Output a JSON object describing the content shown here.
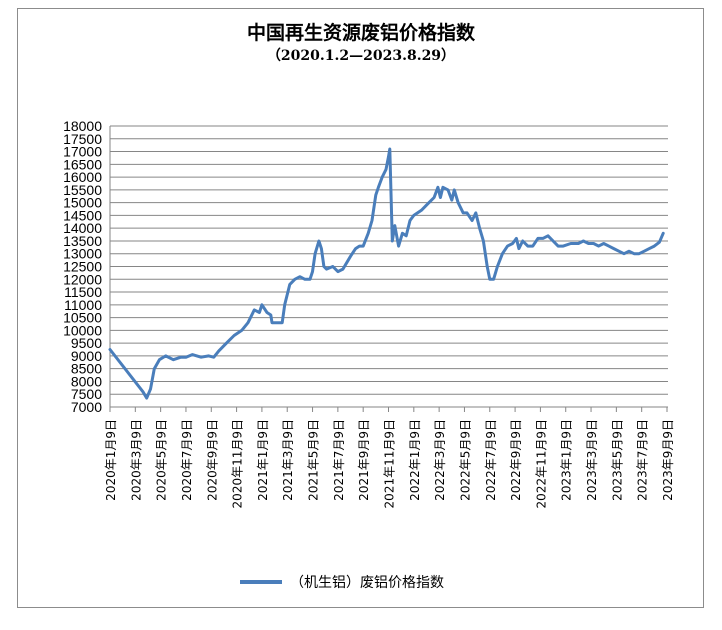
{
  "chart_data": {
    "type": "line",
    "title": "中国再生资源废铝价格指数",
    "subtitle": "（2020.1.2—2023.8.29）",
    "ylim": [
      7000,
      18000
    ],
    "yticks": [
      "7000",
      "7500",
      "8000",
      "8500",
      "9000",
      "9500",
      "10000",
      "10500",
      "11000",
      "11500",
      "12000",
      "12500",
      "13000",
      "13500",
      "14000",
      "14500",
      "15000",
      "15500",
      "16000",
      "16500",
      "17000",
      "17500",
      "18000"
    ],
    "xticks": [
      "2020年1月9日",
      "2020年3月9日",
      "2020年5月9日",
      "2020年7月9日",
      "2020年9月9日",
      "2020年11月9日",
      "2021年1月9日",
      "2021年3月9日",
      "2021年5月9日",
      "2021年7月9日",
      "2021年9月9日",
      "2021年11月9日",
      "2022年1月9日",
      "2022年3月9日",
      "2022年5月9日",
      "2022年7月9日",
      "2022年9月9日",
      "2022年11月9日",
      "2023年1月9日",
      "2023年3月9日",
      "2023年5月9日",
      "2023年7月9日",
      "2023年9月9日"
    ],
    "grid": true,
    "legend_position": "bottom",
    "series": [
      {
        "name": "（机生铝）废铝价格指数",
        "color": "#4a7ebb",
        "points": [
          [
            0.0,
            9250
          ],
          [
            1.3,
            7600
          ],
          [
            1.45,
            7350
          ],
          [
            1.6,
            7700
          ],
          [
            1.75,
            8500
          ],
          [
            1.95,
            8850
          ],
          [
            2.2,
            9000
          ],
          [
            2.5,
            8850
          ],
          [
            2.8,
            8950
          ],
          [
            3.0,
            8950
          ],
          [
            3.25,
            9050
          ],
          [
            3.6,
            8950
          ],
          [
            3.9,
            9000
          ],
          [
            4.1,
            8950
          ],
          [
            4.3,
            9200
          ],
          [
            4.6,
            9500
          ],
          [
            4.9,
            9800
          ],
          [
            5.2,
            10000
          ],
          [
            5.45,
            10300
          ],
          [
            5.7,
            10800
          ],
          [
            5.9,
            10700
          ],
          [
            6.0,
            11000
          ],
          [
            6.2,
            10700
          ],
          [
            6.35,
            10600
          ],
          [
            6.4,
            10300
          ],
          [
            6.8,
            10300
          ],
          [
            6.9,
            11000
          ],
          [
            7.1,
            11800
          ],
          [
            7.3,
            12000
          ],
          [
            7.5,
            12100
          ],
          [
            7.7,
            12000
          ],
          [
            7.9,
            12000
          ],
          [
            8.0,
            12300
          ],
          [
            8.1,
            13000
          ],
          [
            8.25,
            13500
          ],
          [
            8.35,
            13200
          ],
          [
            8.45,
            12500
          ],
          [
            8.55,
            12400
          ],
          [
            8.8,
            12500
          ],
          [
            9.0,
            12300
          ],
          [
            9.2,
            12400
          ],
          [
            9.5,
            12900
          ],
          [
            9.7,
            13200
          ],
          [
            9.85,
            13300
          ],
          [
            10.0,
            13300
          ],
          [
            10.2,
            13800
          ],
          [
            10.35,
            14300
          ],
          [
            10.5,
            15300
          ],
          [
            10.6,
            15600
          ],
          [
            10.75,
            16000
          ],
          [
            10.9,
            16300
          ],
          [
            11.0,
            16800
          ],
          [
            11.05,
            17100
          ],
          [
            11.15,
            13500
          ],
          [
            11.25,
            14100
          ],
          [
            11.4,
            13300
          ],
          [
            11.55,
            13800
          ],
          [
            11.7,
            13700
          ],
          [
            11.85,
            14300
          ],
          [
            12.0,
            14500
          ],
          [
            12.3,
            14700
          ],
          [
            12.6,
            15000
          ],
          [
            12.8,
            15200
          ],
          [
            12.95,
            15600
          ],
          [
            13.05,
            15200
          ],
          [
            13.15,
            15600
          ],
          [
            13.35,
            15500
          ],
          [
            13.5,
            15100
          ],
          [
            13.6,
            15500
          ],
          [
            13.75,
            15000
          ],
          [
            13.95,
            14600
          ],
          [
            14.1,
            14600
          ],
          [
            14.3,
            14300
          ],
          [
            14.45,
            14600
          ],
          [
            14.6,
            14000
          ],
          [
            14.75,
            13500
          ],
          [
            14.9,
            12500
          ],
          [
            15.0,
            12000
          ],
          [
            15.15,
            12000
          ],
          [
            15.3,
            12500
          ],
          [
            15.5,
            13000
          ],
          [
            15.7,
            13300
          ],
          [
            15.9,
            13400
          ],
          [
            16.05,
            13600
          ],
          [
            16.15,
            13200
          ],
          [
            16.3,
            13500
          ],
          [
            16.5,
            13300
          ],
          [
            16.7,
            13300
          ],
          [
            16.9,
            13600
          ],
          [
            17.1,
            13600
          ],
          [
            17.3,
            13700
          ],
          [
            17.5,
            13500
          ],
          [
            17.7,
            13300
          ],
          [
            17.9,
            13300
          ],
          [
            18.2,
            13400
          ],
          [
            18.5,
            13400
          ],
          [
            18.7,
            13500
          ],
          [
            18.9,
            13400
          ],
          [
            19.1,
            13400
          ],
          [
            19.3,
            13300
          ],
          [
            19.5,
            13400
          ],
          [
            19.7,
            13300
          ],
          [
            19.9,
            13200
          ],
          [
            20.1,
            13100
          ],
          [
            20.3,
            13000
          ],
          [
            20.5,
            13100
          ],
          [
            20.7,
            13000
          ],
          [
            20.9,
            13000
          ],
          [
            21.1,
            13100
          ],
          [
            21.3,
            13200
          ],
          [
            21.5,
            13300
          ],
          [
            21.7,
            13450
          ],
          [
            21.85,
            13800
          ]
        ]
      }
    ]
  }
}
